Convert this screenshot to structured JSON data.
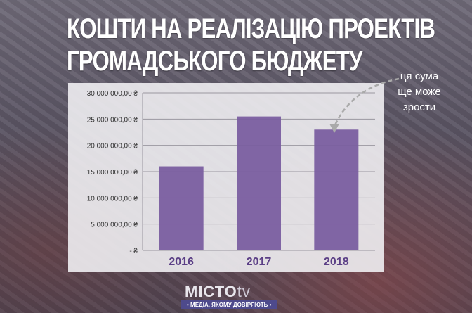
{
  "title_lines": [
    "КОШТИ НА РЕАЛІЗАЦІЮ ПРОЕКТІВ",
    "ГРОМАДСЬКОГО БЮДЖЕТУ"
  ],
  "annotation_lines": [
    "ця сума",
    "ще може",
    "зрости"
  ],
  "logo": {
    "name": "МІСТО",
    "suffix": "tv",
    "tagline": "• МЕДІА, ЯКОМУ ДОВІРЯЮТЬ •"
  },
  "colors": {
    "bar": "#7a5ea0",
    "year_label": "#5b3f86"
  },
  "chart_data": {
    "type": "bar",
    "categories": [
      "2016",
      "2017",
      "2018"
    ],
    "values": [
      16000000,
      25500000,
      23000000
    ],
    "ylim": [
      0,
      30000000
    ],
    "yticks": [
      0,
      5000000,
      10000000,
      15000000,
      20000000,
      25000000,
      30000000
    ],
    "ytick_labels": [
      "-   ₴",
      "5 000 000,00 ₴",
      "10 000 000,00 ₴",
      "15 000 000,00 ₴",
      "20 000 000,00 ₴",
      "25 000 000,00 ₴",
      "30 000 000,00 ₴"
    ],
    "grid": true,
    "title": "",
    "xlabel": "",
    "ylabel": ""
  }
}
